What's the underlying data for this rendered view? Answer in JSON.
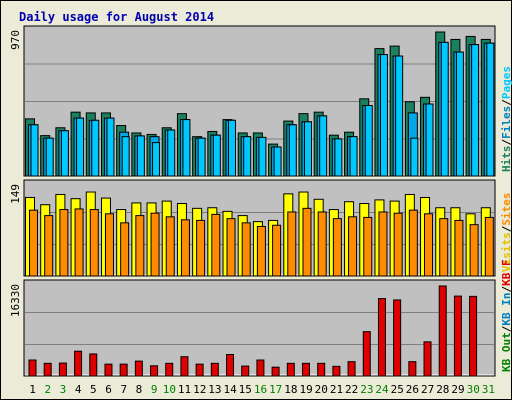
{
  "title": "Daily usage for August 2014",
  "colors": {
    "background": "#ecebd8",
    "frame_outer": "#000000",
    "plot_bg": "#c0c0c0",
    "grid": "#808080",
    "title": "#0000b0",
    "hits": "#1a8060",
    "files": "#00c8ff",
    "pages": "#00a8e8",
    "visits": "#ffff00",
    "sites": "#ff8c00",
    "kb": "#e00000",
    "weekday_label": "#000000",
    "weekend_label": "#008000"
  },
  "legend_top": [
    {
      "text": "Hits",
      "color": "#1a8060"
    },
    {
      "text": "/",
      "color": "#000000"
    },
    {
      "text": "Files",
      "color": "#0080c0"
    },
    {
      "text": "/",
      "color": "#000000"
    },
    {
      "text": "Pages",
      "color": "#00c8ff"
    }
  ],
  "legend_mid": [
    {
      "text": "Visits",
      "color": "#e0c000"
    },
    {
      "text": "/",
      "color": "#000000"
    },
    {
      "text": "Sites",
      "color": "#ff8c00"
    }
  ],
  "legend_bottom": [
    {
      "text": "KB Out",
      "color": "#008000"
    },
    {
      "text": "/",
      "color": "#000000"
    },
    {
      "text": "KB In",
      "color": "#0080c0"
    },
    {
      "text": "/",
      "color": "#000000"
    },
    {
      "text": "KB F",
      "color": "#e00000"
    }
  ],
  "chart_data": [
    {
      "type": "bar",
      "panel": "hits-files-pages",
      "ymax_label": "970",
      "ylim": [
        0,
        970
      ],
      "categories": [
        "1",
        "2",
        "3",
        "4",
        "5",
        "6",
        "7",
        "8",
        "9",
        "10",
        "11",
        "12",
        "13",
        "14",
        "15",
        "16",
        "17",
        "18",
        "19",
        "20",
        "21",
        "22",
        "23",
        "24",
        "25",
        "26",
        "27",
        "28",
        "29",
        "30",
        "31"
      ],
      "series": [
        {
          "name": "Hits",
          "values": [
            385,
            272,
            325,
            430,
            425,
            425,
            340,
            290,
            280,
            325,
            420,
            265,
            300,
            380,
            290,
            290,
            215,
            370,
            420,
            430,
            275,
            295,
            520,
            858,
            875,
            500,
            530,
            970,
            920,
            940,
            920
          ]
        },
        {
          "name": "Files",
          "values": [
            345,
            255,
            305,
            390,
            375,
            390,
            295,
            270,
            265,
            310,
            380,
            255,
            275,
            375,
            265,
            260,
            195,
            345,
            365,
            405,
            250,
            265,
            475,
            818,
            808,
            425,
            485,
            900,
            835,
            885,
            895
          ]
        },
        {
          "name": "Pages",
          "values": [
            345,
            255,
            305,
            390,
            375,
            390,
            265,
            270,
            225,
            310,
            380,
            255,
            275,
            375,
            265,
            260,
            195,
            345,
            365,
            405,
            250,
            265,
            475,
            818,
            808,
            255,
            485,
            900,
            835,
            885,
            895
          ]
        }
      ]
    },
    {
      "type": "bar",
      "panel": "visits-sites",
      "ymax_label": "149",
      "ylim": [
        0,
        149
      ],
      "categories": [
        "1",
        "2",
        "3",
        "4",
        "5",
        "6",
        "7",
        "8",
        "9",
        "10",
        "11",
        "12",
        "13",
        "14",
        "15",
        "16",
        "17",
        "18",
        "19",
        "20",
        "21",
        "22",
        "23",
        "24",
        "25",
        "26",
        "27",
        "28",
        "29",
        "30",
        "31"
      ],
      "series": [
        {
          "name": "Visits",
          "values": [
            130,
            118,
            135,
            128,
            139,
            129,
            110,
            121,
            121,
            124,
            120,
            112,
            113,
            107,
            100,
            90,
            92,
            136,
            139,
            127,
            110,
            123,
            120,
            126,
            124,
            135,
            130,
            113,
            113,
            103,
            113
          ]
        },
        {
          "name": "Sites",
          "values": [
            109,
            100,
            110,
            111,
            110,
            103,
            88,
            100,
            104,
            98,
            93,
            92,
            102,
            95,
            88,
            82,
            84,
            106,
            112,
            106,
            95,
            98,
            97,
            106,
            104,
            109,
            103,
            95,
            92,
            85,
            97
          ]
        }
      ]
    },
    {
      "type": "bar",
      "panel": "kb",
      "ymax_label": "16330",
      "ylim": [
        0,
        16330
      ],
      "categories": [
        "1",
        "2",
        "3",
        "4",
        "5",
        "6",
        "7",
        "8",
        "9",
        "10",
        "11",
        "12",
        "13",
        "14",
        "15",
        "16",
        "17",
        "18",
        "19",
        "20",
        "21",
        "22",
        "23",
        "24",
        "25",
        "26",
        "27",
        "28",
        "29",
        "30",
        "31"
      ],
      "series": [
        {
          "name": "KB F",
          "values": [
            2900,
            2300,
            2350,
            4500,
            4000,
            2150,
            2150,
            2700,
            1850,
            2300,
            3500,
            2150,
            2300,
            3900,
            1800,
            2900,
            1600,
            2300,
            2300,
            2300,
            1750,
            2600,
            8050,
            14050,
            13800,
            2600,
            6200,
            16330,
            14500,
            14450,
            0
          ]
        }
      ]
    }
  ]
}
